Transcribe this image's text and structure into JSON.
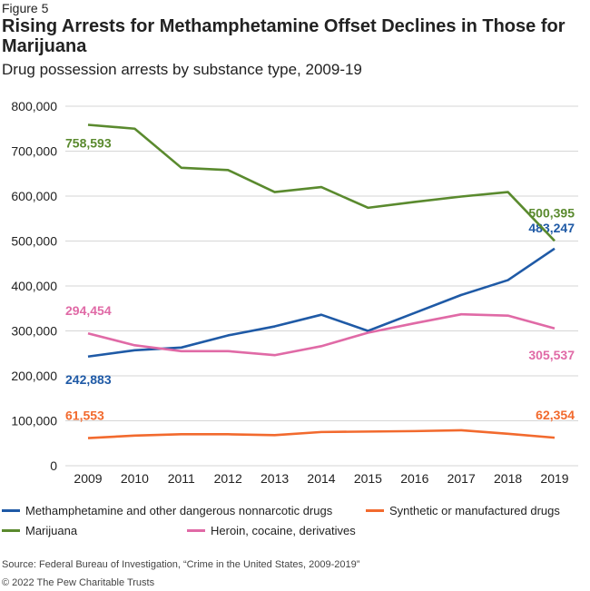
{
  "figure_label": "Figure 5",
  "source": "Source: Federal Bureau of Investigation, “Crime in the United States, 2009-2019”",
  "copyright": "© 2022 The Pew Charitable Trusts",
  "chart_data": {
    "type": "line",
    "title": "Rising Arrests for Methamphetamine Offset Declines in Those for Marijuana",
    "subtitle": "Drug possession arrests by substance type, 2009-19",
    "xlabel": "",
    "ylabel": "",
    "ylim": [
      0,
      800000
    ],
    "grid": true,
    "legend_position": "bottom",
    "x": [
      "2009",
      "2010",
      "2011",
      "2012",
      "2013",
      "2014",
      "2015",
      "2016",
      "2017",
      "2018",
      "2019"
    ],
    "yticks": [
      "0",
      "100,000",
      "200,000",
      "300,000",
      "400,000",
      "500,000",
      "600,000",
      "700,000",
      "800,000"
    ],
    "series": [
      {
        "name": "Methamphetamine and other dangerous nonnarcotic drugs",
        "color": "#1f5aa6",
        "values": [
          242883,
          257000,
          263000,
          290000,
          310000,
          336000,
          300000,
          340000,
          380000,
          413000,
          483247
        ],
        "labels": [
          "242,883",
          "483,247"
        ]
      },
      {
        "name": "Synthetic or manufactured drugs",
        "color": "#f26a2e",
        "values": [
          61553,
          67000,
          70000,
          70000,
          68000,
          75000,
          76000,
          77000,
          79000,
          71000,
          62354
        ],
        "labels": [
          "61,553",
          "62,354"
        ]
      },
      {
        "name": "Marijuana",
        "color": "#5a8a2e",
        "values": [
          758593,
          750000,
          663000,
          658000,
          609000,
          620000,
          574000,
          587000,
          599000,
          609000,
          500395
        ],
        "labels": [
          "758,593",
          "500,395"
        ]
      },
      {
        "name": "Heroin, cocaine, derivatives",
        "color": "#e06aa6",
        "values": [
          294454,
          268000,
          255000,
          255000,
          246000,
          266000,
          296000,
          317000,
          337000,
          334000,
          305537
        ],
        "labels": [
          "294,454",
          "305,537"
        ]
      }
    ]
  }
}
